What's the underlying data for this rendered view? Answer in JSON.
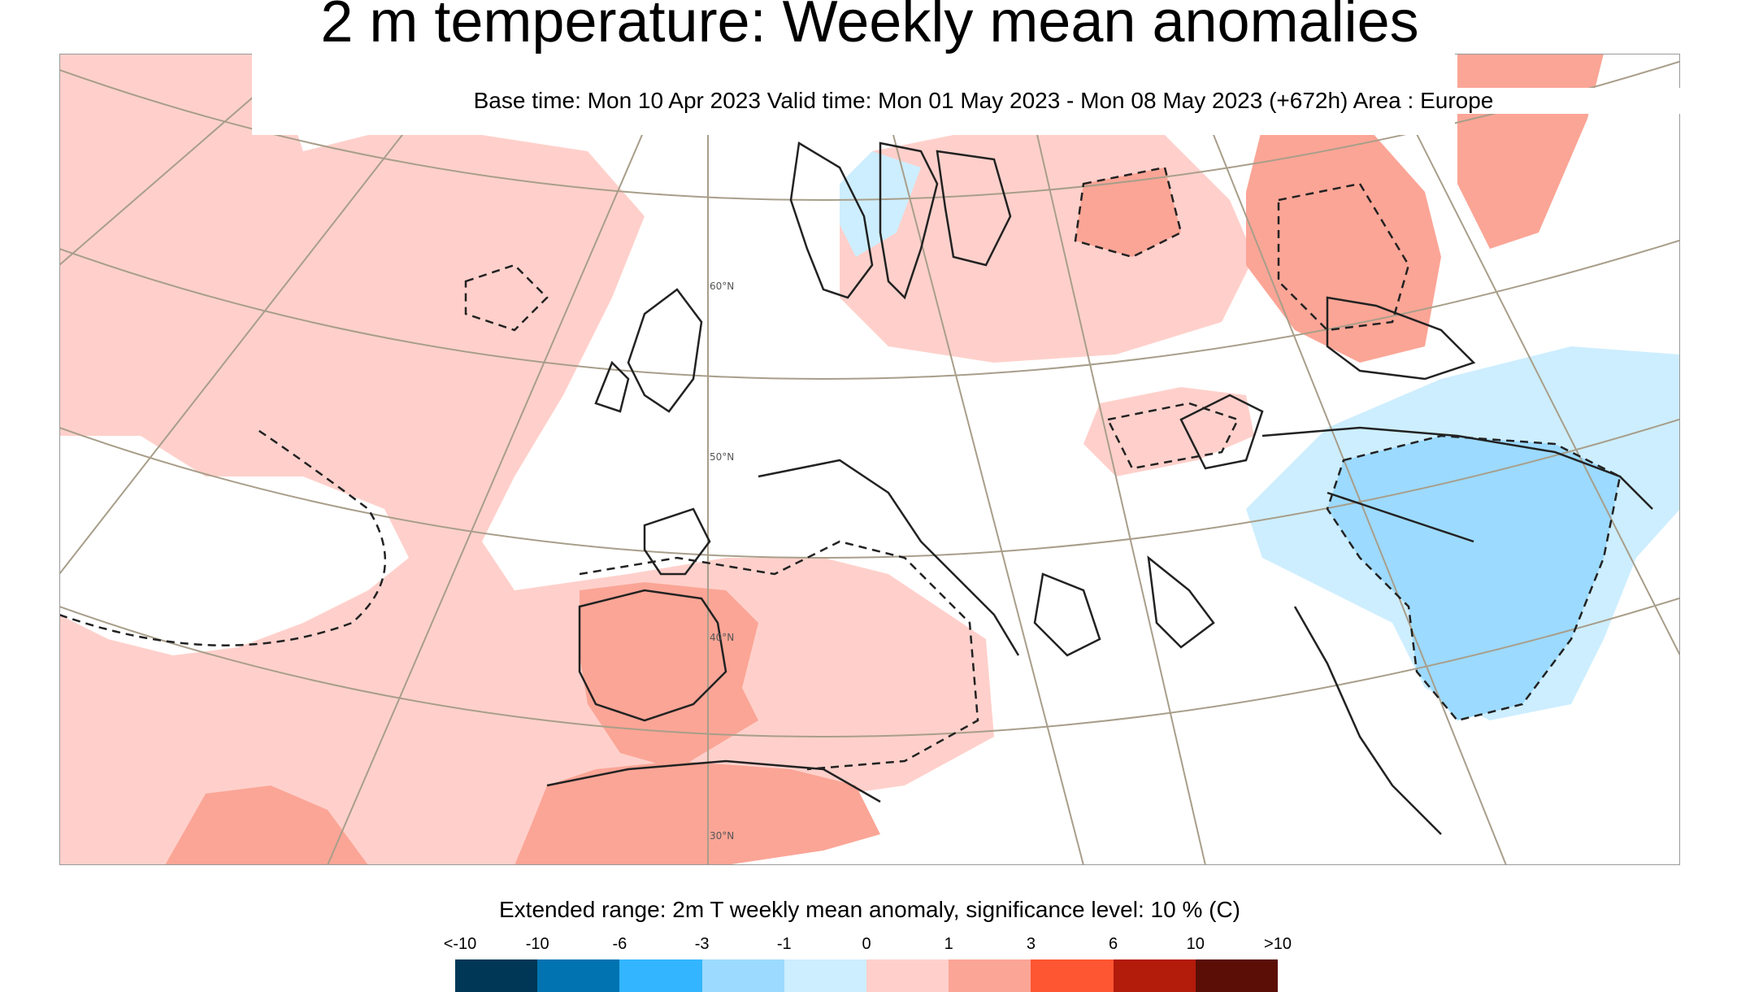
{
  "title": "2 m temperature: Weekly mean anomalies",
  "subtitle": "Base time: Mon 10 Apr 2023 Valid time: Mon 01 May 2023 - Mon 08 May 2023 (+672h) Area : Europe",
  "map": {
    "region": "Europe",
    "latitude_labels": [
      "60°N",
      "50°N",
      "40°N",
      "30°N"
    ],
    "contour_style": "dashed black line marks significance",
    "anomaly_colors": {
      "light_warm": "#ffd0cb",
      "warm": "#fba596",
      "light_cold": "#cdeeff",
      "cold": "#9cdaff",
      "land_outline": "#333333",
      "graticule": "#a89e8a"
    }
  },
  "legend": {
    "title": "Extended range: 2m T weekly mean anomaly, significance level: 10 % (C)",
    "tick_labels": [
      "<-10",
      "-10",
      "-6",
      "-3",
      "-1",
      "0",
      "1",
      "3",
      "6",
      "10",
      ">10"
    ],
    "colors": [
      "#003757",
      "#0073b0",
      "#33b6ff",
      "#9cdaff",
      "#cdeeff",
      "#ffd0cb",
      "#fba596",
      "#fe5533",
      "#b31b0a",
      "#5a0e05"
    ]
  }
}
